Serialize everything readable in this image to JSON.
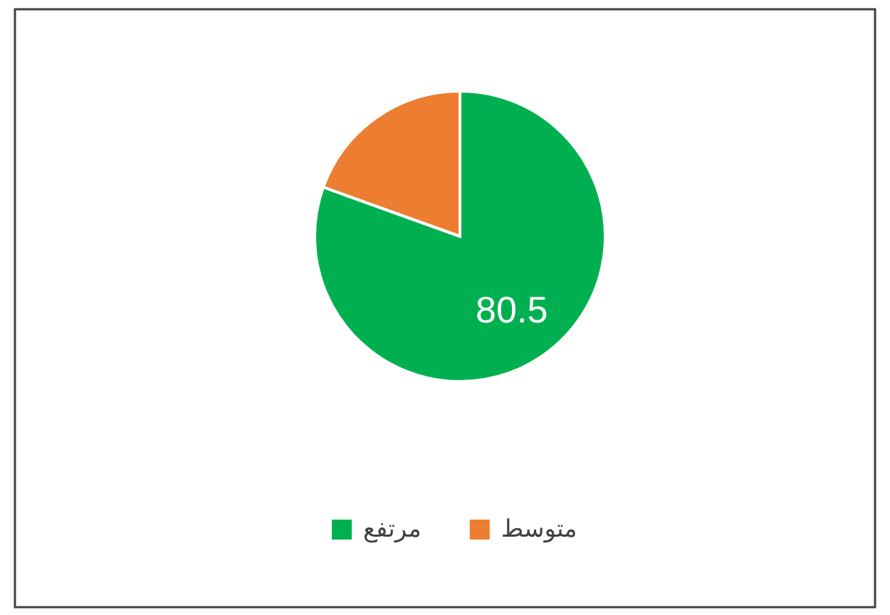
{
  "chart_data": {
    "type": "pie",
    "categories": [
      "مرتفع",
      "متوسط"
    ],
    "values": [
      80.5,
      19.5
    ],
    "colors": [
      "#00b050",
      "#ed7d31"
    ],
    "value_labels": [
      "80.5",
      null
    ],
    "legend": "bottom"
  }
}
